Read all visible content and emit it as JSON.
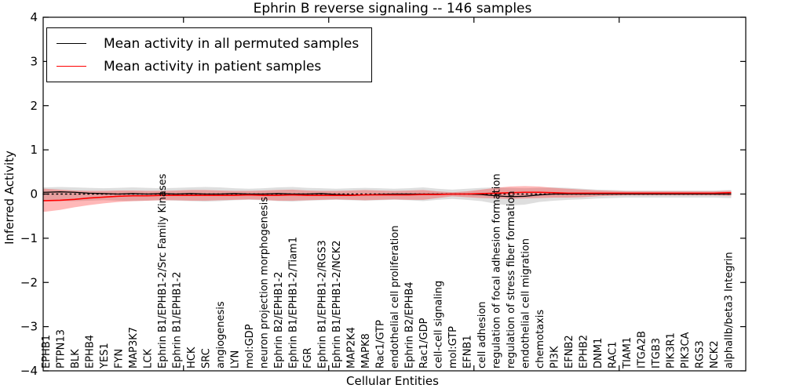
{
  "figure": {
    "title": "Ephrin B reverse signaling -- 146 samples",
    "xlabel": "Cellular Entities",
    "ylabel": "Inferred Activity"
  },
  "legend": {
    "entries": [
      {
        "label": "Mean activity in all permuted samples",
        "color": "#000000"
      },
      {
        "label": "Mean activity in patient samples",
        "color": "#ff0000"
      }
    ]
  },
  "chart_data": {
    "type": "line",
    "title": "Ephrin B reverse signaling -- 146 samples",
    "xlabel": "Cellular Entities",
    "ylabel": "Inferred Activity",
    "ylim": [
      -4,
      4
    ],
    "yticks": [
      -4,
      -3,
      -2,
      -1,
      0,
      1,
      2,
      3,
      4
    ],
    "x_major_ticks": [
      10,
      20,
      30,
      40
    ],
    "grid": false,
    "legend_position": "upper left",
    "zero_reference_line": 0,
    "categories": [
      "EPHB1",
      "PTPN13",
      "BLK",
      "EPHB4",
      "YES1",
      "FYN",
      "MAP3K7",
      "LCK",
      "Ephrin B1/EPHB1-2/Src Family Kinases",
      "Ephrin B1/EPHB1-2",
      "HCK",
      "SRC",
      "angiogenesis",
      "LYN",
      "mol:GDP",
      "neuron projection morphogenesis",
      "Ephrin B2/EPHB1-2",
      "Ephrin B1/EPHB1-2/Tiam1",
      "FGR",
      "Ephrin B1/EPHB1-2/RGS3",
      "Ephrin B1/EPHB1-2/NCK2",
      "MAP2K4",
      "MAPK8",
      "Rac1/GTP",
      "endothelial cell proliferation",
      "Ephrin B2/EPHB4",
      "Rac1/GDP",
      "cell-cell signaling",
      "mol:GTP",
      "EFNB1",
      "cell adhesion",
      "regulation of focal adhesion formation",
      "regulation of stress fiber formation",
      "endothelial cell migration",
      "chemotaxis",
      "PI3K",
      "EFNB2",
      "EPHB2",
      "DNM1",
      "RAC1",
      "TIAM1",
      "ITGA2B",
      "ITGB3",
      "PIK3R1",
      "PIK3CA",
      "RGS3",
      "NCK2",
      "alphaIIb/beta3 Integrin"
    ],
    "series": [
      {
        "name": "Mean activity in all permuted samples",
        "color": "#000000",
        "values": [
          0.04,
          0.05,
          0.04,
          0.02,
          0.01,
          0.0,
          0.01,
          0.0,
          0.01,
          0.0,
          0.01,
          0.0,
          0.0,
          0.01,
          0.0,
          0.0,
          0.01,
          0.0,
          0.0,
          0.01,
          -0.01,
          -0.02,
          -0.02,
          -0.01,
          0.0,
          0.0,
          0.0,
          0.0,
          0.0,
          0.0,
          -0.01,
          -0.04,
          -0.06,
          -0.05,
          -0.02,
          0.0,
          0.0,
          0.0,
          0.0,
          0.0,
          0.0,
          0.0,
          0.0,
          0.0,
          0.0,
          0.0,
          0.0,
          0.0
        ]
      },
      {
        "name": "Mean activity in patient samples",
        "color": "#ff0000",
        "values": [
          -0.15,
          -0.14,
          -0.12,
          -0.09,
          -0.07,
          -0.05,
          -0.04,
          -0.04,
          -0.03,
          -0.03,
          -0.03,
          -0.03,
          -0.03,
          -0.03,
          -0.02,
          -0.03,
          -0.03,
          -0.02,
          -0.03,
          -0.03,
          -0.03,
          -0.03,
          -0.02,
          -0.02,
          -0.02,
          -0.02,
          -0.01,
          -0.01,
          0.0,
          0.0,
          0.01,
          0.02,
          0.03,
          0.04,
          0.04,
          0.03,
          0.02,
          0.02,
          0.02,
          0.02,
          0.02,
          0.02,
          0.02,
          0.02,
          0.02,
          0.02,
          0.02,
          0.03
        ]
      }
    ],
    "bands": [
      {
        "name": "permuted-samples-range",
        "fill": "#000000",
        "opacity": 0.13,
        "upper": [
          0.15,
          0.16,
          0.15,
          0.14,
          0.13,
          0.14,
          0.15,
          0.14,
          0.13,
          0.14,
          0.15,
          0.16,
          0.15,
          0.13,
          0.12,
          0.13,
          0.15,
          0.16,
          0.14,
          0.13,
          0.12,
          0.13,
          0.14,
          0.13,
          0.12,
          0.13,
          0.15,
          0.12,
          0.1,
          0.12,
          0.14,
          0.15,
          0.14,
          0.13,
          0.14,
          0.15,
          0.14,
          0.12,
          0.1,
          0.09,
          0.08,
          0.08,
          0.08,
          0.08,
          0.08,
          0.08,
          0.08,
          0.09
        ],
        "lower": [
          -0.15,
          -0.16,
          -0.16,
          -0.15,
          -0.14,
          -0.15,
          -0.16,
          -0.15,
          -0.14,
          -0.15,
          -0.16,
          -0.17,
          -0.16,
          -0.14,
          -0.13,
          -0.14,
          -0.16,
          -0.17,
          -0.15,
          -0.14,
          -0.13,
          -0.14,
          -0.15,
          -0.14,
          -0.13,
          -0.14,
          -0.16,
          -0.13,
          -0.11,
          -0.13,
          -0.16,
          -0.22,
          -0.26,
          -0.24,
          -0.18,
          -0.15,
          -0.13,
          -0.12,
          -0.1,
          -0.09,
          -0.08,
          -0.08,
          -0.08,
          -0.08,
          -0.08,
          -0.08,
          -0.08,
          -0.09
        ]
      },
      {
        "name": "patient-samples-range",
        "fill": "#ff0000",
        "opacity": 0.28,
        "upper": [
          0.12,
          0.1,
          0.08,
          0.07,
          0.07,
          0.08,
          0.08,
          0.07,
          0.07,
          0.08,
          0.09,
          0.09,
          0.08,
          0.07,
          0.07,
          0.08,
          0.09,
          0.1,
          0.08,
          0.07,
          0.07,
          0.08,
          0.09,
          0.08,
          0.07,
          0.08,
          0.09,
          0.06,
          0.04,
          0.06,
          0.1,
          0.14,
          0.17,
          0.18,
          0.17,
          0.14,
          0.12,
          0.1,
          0.08,
          0.07,
          0.06,
          0.06,
          0.06,
          0.06,
          0.06,
          0.06,
          0.06,
          0.07
        ],
        "lower": [
          -0.4,
          -0.36,
          -0.3,
          -0.25,
          -0.21,
          -0.18,
          -0.16,
          -0.15,
          -0.14,
          -0.14,
          -0.15,
          -0.15,
          -0.14,
          -0.13,
          -0.12,
          -0.13,
          -0.15,
          -0.15,
          -0.14,
          -0.13,
          -0.12,
          -0.13,
          -0.14,
          -0.13,
          -0.12,
          -0.13,
          -0.13,
          -0.09,
          -0.05,
          -0.07,
          -0.09,
          -0.1,
          -0.11,
          -0.1,
          -0.09,
          -0.08,
          -0.08,
          -0.07,
          -0.05,
          -0.04,
          -0.03,
          -0.03,
          -0.03,
          -0.03,
          -0.03,
          -0.03,
          -0.03,
          -0.04
        ]
      }
    ]
  }
}
